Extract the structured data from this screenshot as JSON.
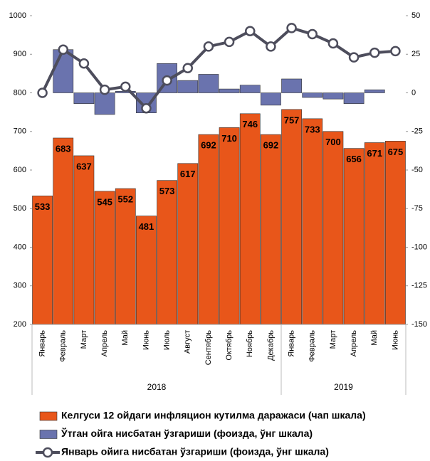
{
  "chart_data": {
    "type": "bar",
    "categories": [
      "Январь",
      "Февраль",
      "Март",
      "Апрель",
      "Май",
      "Июнь",
      "Июль",
      "Август",
      "Сентябрь",
      "Октябрь",
      "Ноябрь",
      "Декабрь",
      "Январь",
      "Февраль",
      "Март",
      "Апрель",
      "Май",
      "Июнь"
    ],
    "groups": [
      {
        "label": "2018",
        "span": 12
      },
      {
        "label": "2019",
        "span": 6
      }
    ],
    "series": [
      {
        "name": "Келгуси 12 ойдаги инфляцион кутилма даражаси (чап шкала)",
        "type": "bar",
        "axis": "y",
        "color": "#e8561a",
        "values": [
          533,
          683,
          637,
          545,
          552,
          481,
          573,
          617,
          692,
          710,
          746,
          692,
          757,
          733,
          700,
          656,
          671,
          675
        ]
      },
      {
        "name": "Ўтган ойга нисбатан ўзгариши (фоизда, ўнг шкала)",
        "type": "bar",
        "axis": "y2",
        "color": "#6a73ae",
        "values": [
          0,
          28,
          -7,
          -14,
          1,
          -13,
          19,
          8,
          12,
          2.5,
          5,
          -8,
          9,
          -3,
          -4,
          -7,
          2,
          0
        ]
      },
      {
        "name": "Январь ойига нисбатан ўзгариши  (фоизда, ўнг шкала)",
        "type": "line",
        "axis": "y2",
        "color": "#4d4d5c",
        "values": [
          0,
          28,
          19,
          2,
          4,
          -10,
          8,
          16,
          30,
          33,
          40,
          30,
          42,
          38,
          32,
          23,
          26,
          27
        ]
      }
    ],
    "ylim": [
      200,
      1000
    ],
    "yticks": [
      200,
      300,
      400,
      500,
      600,
      700,
      800,
      900,
      1000
    ],
    "y2lim": [
      -150,
      50
    ],
    "y2ticks": [
      -150,
      -125,
      -100,
      -75,
      -50,
      -25,
      0,
      25,
      50
    ]
  }
}
